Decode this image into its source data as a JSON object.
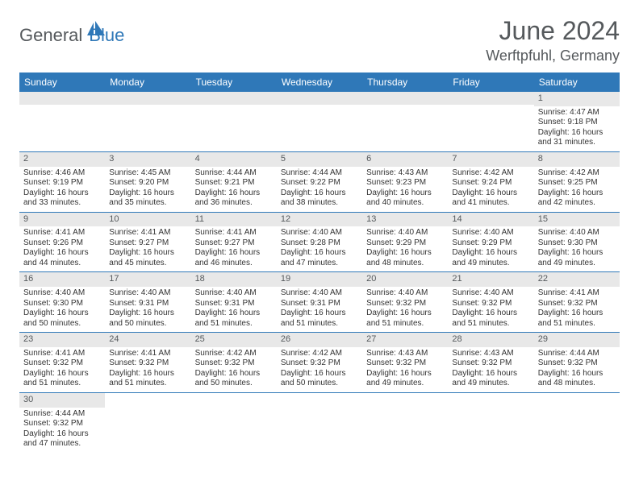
{
  "brand": {
    "part1": "General",
    "part2": "Blue"
  },
  "title": "June 2024",
  "location": "Werftpfuhl, Germany",
  "colors": {
    "header_bg": "#2f78b8",
    "header_text": "#ffffff",
    "daynum_bg": "#e8e8e8",
    "text_muted": "#55595c",
    "row_border": "#2f78b8"
  },
  "weekdays": [
    "Sunday",
    "Monday",
    "Tuesday",
    "Wednesday",
    "Thursday",
    "Friday",
    "Saturday"
  ],
  "weeks": [
    [
      {
        "n": "",
        "sr": "",
        "ss": "",
        "dl": ""
      },
      {
        "n": "",
        "sr": "",
        "ss": "",
        "dl": ""
      },
      {
        "n": "",
        "sr": "",
        "ss": "",
        "dl": ""
      },
      {
        "n": "",
        "sr": "",
        "ss": "",
        "dl": ""
      },
      {
        "n": "",
        "sr": "",
        "ss": "",
        "dl": ""
      },
      {
        "n": "",
        "sr": "",
        "ss": "",
        "dl": ""
      },
      {
        "n": "1",
        "sr": "Sunrise: 4:47 AM",
        "ss": "Sunset: 9:18 PM",
        "dl": "Daylight: 16 hours and 31 minutes."
      }
    ],
    [
      {
        "n": "2",
        "sr": "Sunrise: 4:46 AM",
        "ss": "Sunset: 9:19 PM",
        "dl": "Daylight: 16 hours and 33 minutes."
      },
      {
        "n": "3",
        "sr": "Sunrise: 4:45 AM",
        "ss": "Sunset: 9:20 PM",
        "dl": "Daylight: 16 hours and 35 minutes."
      },
      {
        "n": "4",
        "sr": "Sunrise: 4:44 AM",
        "ss": "Sunset: 9:21 PM",
        "dl": "Daylight: 16 hours and 36 minutes."
      },
      {
        "n": "5",
        "sr": "Sunrise: 4:44 AM",
        "ss": "Sunset: 9:22 PM",
        "dl": "Daylight: 16 hours and 38 minutes."
      },
      {
        "n": "6",
        "sr": "Sunrise: 4:43 AM",
        "ss": "Sunset: 9:23 PM",
        "dl": "Daylight: 16 hours and 40 minutes."
      },
      {
        "n": "7",
        "sr": "Sunrise: 4:42 AM",
        "ss": "Sunset: 9:24 PM",
        "dl": "Daylight: 16 hours and 41 minutes."
      },
      {
        "n": "8",
        "sr": "Sunrise: 4:42 AM",
        "ss": "Sunset: 9:25 PM",
        "dl": "Daylight: 16 hours and 42 minutes."
      }
    ],
    [
      {
        "n": "9",
        "sr": "Sunrise: 4:41 AM",
        "ss": "Sunset: 9:26 PM",
        "dl": "Daylight: 16 hours and 44 minutes."
      },
      {
        "n": "10",
        "sr": "Sunrise: 4:41 AM",
        "ss": "Sunset: 9:27 PM",
        "dl": "Daylight: 16 hours and 45 minutes."
      },
      {
        "n": "11",
        "sr": "Sunrise: 4:41 AM",
        "ss": "Sunset: 9:27 PM",
        "dl": "Daylight: 16 hours and 46 minutes."
      },
      {
        "n": "12",
        "sr": "Sunrise: 4:40 AM",
        "ss": "Sunset: 9:28 PM",
        "dl": "Daylight: 16 hours and 47 minutes."
      },
      {
        "n": "13",
        "sr": "Sunrise: 4:40 AM",
        "ss": "Sunset: 9:29 PM",
        "dl": "Daylight: 16 hours and 48 minutes."
      },
      {
        "n": "14",
        "sr": "Sunrise: 4:40 AM",
        "ss": "Sunset: 9:29 PM",
        "dl": "Daylight: 16 hours and 49 minutes."
      },
      {
        "n": "15",
        "sr": "Sunrise: 4:40 AM",
        "ss": "Sunset: 9:30 PM",
        "dl": "Daylight: 16 hours and 49 minutes."
      }
    ],
    [
      {
        "n": "16",
        "sr": "Sunrise: 4:40 AM",
        "ss": "Sunset: 9:30 PM",
        "dl": "Daylight: 16 hours and 50 minutes."
      },
      {
        "n": "17",
        "sr": "Sunrise: 4:40 AM",
        "ss": "Sunset: 9:31 PM",
        "dl": "Daylight: 16 hours and 50 minutes."
      },
      {
        "n": "18",
        "sr": "Sunrise: 4:40 AM",
        "ss": "Sunset: 9:31 PM",
        "dl": "Daylight: 16 hours and 51 minutes."
      },
      {
        "n": "19",
        "sr": "Sunrise: 4:40 AM",
        "ss": "Sunset: 9:31 PM",
        "dl": "Daylight: 16 hours and 51 minutes."
      },
      {
        "n": "20",
        "sr": "Sunrise: 4:40 AM",
        "ss": "Sunset: 9:32 PM",
        "dl": "Daylight: 16 hours and 51 minutes."
      },
      {
        "n": "21",
        "sr": "Sunrise: 4:40 AM",
        "ss": "Sunset: 9:32 PM",
        "dl": "Daylight: 16 hours and 51 minutes."
      },
      {
        "n": "22",
        "sr": "Sunrise: 4:41 AM",
        "ss": "Sunset: 9:32 PM",
        "dl": "Daylight: 16 hours and 51 minutes."
      }
    ],
    [
      {
        "n": "23",
        "sr": "Sunrise: 4:41 AM",
        "ss": "Sunset: 9:32 PM",
        "dl": "Daylight: 16 hours and 51 minutes."
      },
      {
        "n": "24",
        "sr": "Sunrise: 4:41 AM",
        "ss": "Sunset: 9:32 PM",
        "dl": "Daylight: 16 hours and 51 minutes."
      },
      {
        "n": "25",
        "sr": "Sunrise: 4:42 AM",
        "ss": "Sunset: 9:32 PM",
        "dl": "Daylight: 16 hours and 50 minutes."
      },
      {
        "n": "26",
        "sr": "Sunrise: 4:42 AM",
        "ss": "Sunset: 9:32 PM",
        "dl": "Daylight: 16 hours and 50 minutes."
      },
      {
        "n": "27",
        "sr": "Sunrise: 4:43 AM",
        "ss": "Sunset: 9:32 PM",
        "dl": "Daylight: 16 hours and 49 minutes."
      },
      {
        "n": "28",
        "sr": "Sunrise: 4:43 AM",
        "ss": "Sunset: 9:32 PM",
        "dl": "Daylight: 16 hours and 49 minutes."
      },
      {
        "n": "29",
        "sr": "Sunrise: 4:44 AM",
        "ss": "Sunset: 9:32 PM",
        "dl": "Daylight: 16 hours and 48 minutes."
      }
    ],
    [
      {
        "n": "30",
        "sr": "Sunrise: 4:44 AM",
        "ss": "Sunset: 9:32 PM",
        "dl": "Daylight: 16 hours and 47 minutes."
      },
      {
        "n": "",
        "sr": "",
        "ss": "",
        "dl": ""
      },
      {
        "n": "",
        "sr": "",
        "ss": "",
        "dl": ""
      },
      {
        "n": "",
        "sr": "",
        "ss": "",
        "dl": ""
      },
      {
        "n": "",
        "sr": "",
        "ss": "",
        "dl": ""
      },
      {
        "n": "",
        "sr": "",
        "ss": "",
        "dl": ""
      },
      {
        "n": "",
        "sr": "",
        "ss": "",
        "dl": ""
      }
    ]
  ]
}
